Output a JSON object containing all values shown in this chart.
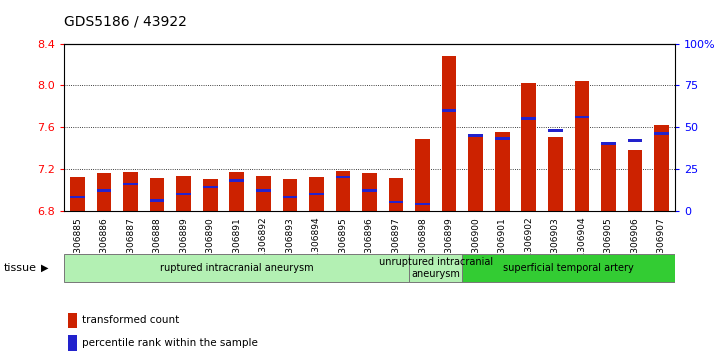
{
  "title": "GDS5186 / 43922",
  "samples": [
    "GSM1306885",
    "GSM1306886",
    "GSM1306887",
    "GSM1306888",
    "GSM1306889",
    "GSM1306890",
    "GSM1306891",
    "GSM1306892",
    "GSM1306893",
    "GSM1306894",
    "GSM1306895",
    "GSM1306896",
    "GSM1306897",
    "GSM1306898",
    "GSM1306899",
    "GSM1306900",
    "GSM1306901",
    "GSM1306902",
    "GSM1306903",
    "GSM1306904",
    "GSM1306905",
    "GSM1306906",
    "GSM1306907"
  ],
  "transformed_count": [
    7.12,
    7.16,
    7.17,
    7.11,
    7.13,
    7.1,
    7.17,
    7.13,
    7.1,
    7.12,
    7.18,
    7.16,
    7.11,
    7.49,
    8.28,
    7.51,
    7.55,
    8.02,
    7.5,
    8.04,
    7.45,
    7.38,
    7.62
  ],
  "percentile_rank": [
    8,
    12,
    16,
    6,
    10,
    14,
    18,
    12,
    8,
    10,
    20,
    12,
    5,
    4,
    60,
    45,
    43,
    55,
    48,
    56,
    40,
    42,
    46
  ],
  "ylim_left": [
    6.8,
    8.4
  ],
  "ylim_right": [
    0,
    100
  ],
  "yticks_left": [
    6.8,
    7.2,
    7.6,
    8.0,
    8.4
  ],
  "yticks_right": [
    0,
    25,
    50,
    75,
    100
  ],
  "ytick_labels_right": [
    "0",
    "25",
    "50",
    "75",
    "100%"
  ],
  "group_defs": [
    {
      "start": 0,
      "end": 12,
      "color": "#b3f0b3",
      "label": "ruptured intracranial aneurysm"
    },
    {
      "start": 13,
      "end": 14,
      "color": "#b3f0b3",
      "label": "unruptured intracranial\naneurysm"
    },
    {
      "start": 15,
      "end": 22,
      "color": "#33cc33",
      "label": "superficial temporal artery"
    }
  ],
  "bar_color_red": "#cc2200",
  "bar_color_blue": "#2222cc",
  "bar_width": 0.55,
  "plot_bg": "#ffffff",
  "legend_red_label": "transformed count",
  "legend_blue_label": "percentile rank within the sample",
  "tissue_label": "tissue"
}
